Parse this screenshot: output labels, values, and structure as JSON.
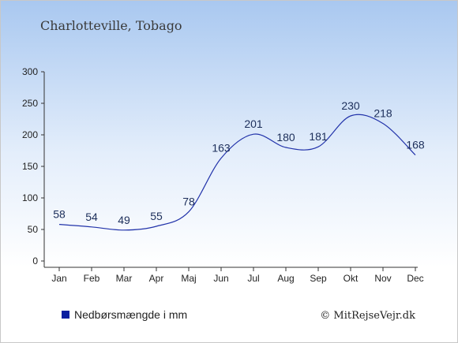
{
  "chart_data": {
    "type": "line",
    "title": "Charlotteville, Tobago",
    "categories": [
      "Jan",
      "Feb",
      "Mar",
      "Apr",
      "Maj",
      "Jun",
      "Jul",
      "Aug",
      "Sep",
      "Okt",
      "Nov",
      "Dec"
    ],
    "series": [
      {
        "name": "Nedbørsmængde i mm",
        "values": [
          58,
          54,
          49,
          55,
          78,
          163,
          201,
          180,
          181,
          230,
          218,
          168
        ],
        "color": "#2233aa"
      }
    ],
    "ylim": [
      0,
      300
    ],
    "yticks": [
      0,
      50,
      100,
      150,
      200,
      250,
      300
    ],
    "grid": false,
    "legend": "bottom-left",
    "legend_swatch_color": "#0a1fa0",
    "credit": "© MitRejseVejr.dk"
  }
}
